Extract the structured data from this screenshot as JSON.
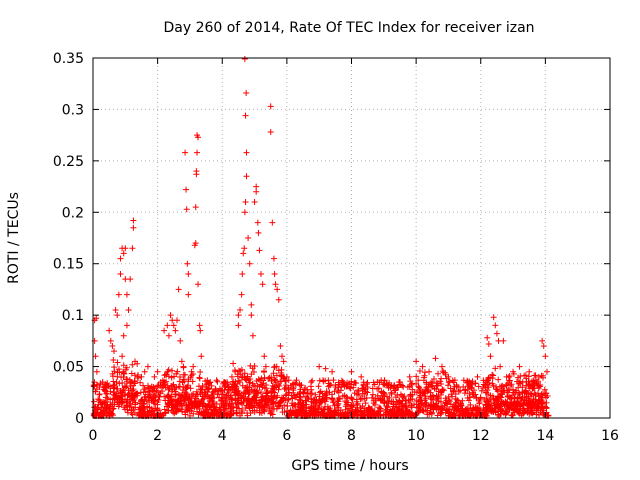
{
  "chart_data": {
    "type": "scatter",
    "title": "Day 260 of 2014, Rate Of TEC Index for receiver izan",
    "xlabel": "GPS time / hours",
    "ylabel": "ROTI / TECUs",
    "xlim": [
      0,
      16
    ],
    "ylim": [
      0,
      0.35
    ],
    "xticks": [
      "0",
      "2",
      "4",
      "6",
      "8",
      "10",
      "12",
      "14",
      "16"
    ],
    "yticks": [
      "0",
      "0.05",
      "0.1",
      "0.15",
      "0.2",
      "0.25",
      "0.3",
      "0.35"
    ],
    "marker": "+",
    "color": "#ff0000",
    "grid": true,
    "series": [
      {
        "name": "ROTI",
        "points": [
          [
            0.05,
            0.095
          ],
          [
            0.1,
            0.097
          ],
          [
            0.05,
            0.075
          ],
          [
            0.08,
            0.06
          ],
          [
            0.12,
            0.045
          ],
          [
            0.2,
            0.03
          ],
          [
            0.3,
            0.035
          ],
          [
            0.4,
            0.02
          ],
          [
            0.5,
            0.085
          ],
          [
            0.55,
            0.075
          ],
          [
            0.6,
            0.07
          ],
          [
            0.65,
            0.065
          ],
          [
            0.7,
            0.105
          ],
          [
            0.75,
            0.1
          ],
          [
            0.8,
            0.12
          ],
          [
            0.85,
            0.14
          ],
          [
            0.85,
            0.155
          ],
          [
            0.9,
            0.165
          ],
          [
            0.95,
            0.16
          ],
          [
            1.0,
            0.165
          ],
          [
            1.0,
            0.135
          ],
          [
            1.05,
            0.12
          ],
          [
            1.1,
            0.105
          ],
          [
            1.05,
            0.09
          ],
          [
            0.95,
            0.08
          ],
          [
            0.9,
            0.06
          ],
          [
            1.15,
            0.135
          ],
          [
            1.25,
            0.185
          ],
          [
            1.25,
            0.192
          ],
          [
            1.22,
            0.165
          ],
          [
            1.3,
            0.055
          ],
          [
            1.5,
            0.04
          ],
          [
            1.6,
            0.045
          ],
          [
            1.7,
            0.05
          ],
          [
            1.9,
            0.04
          ],
          [
            2.0,
            0.045
          ],
          [
            2.1,
            0.035
          ],
          [
            2.2,
            0.085
          ],
          [
            2.3,
            0.09
          ],
          [
            2.35,
            0.08
          ],
          [
            2.4,
            0.1
          ],
          [
            2.45,
            0.095
          ],
          [
            2.5,
            0.09
          ],
          [
            2.55,
            0.085
          ],
          [
            2.6,
            0.095
          ],
          [
            2.65,
            0.125
          ],
          [
            2.7,
            0.075
          ],
          [
            2.75,
            0.055
          ],
          [
            2.8,
            0.05
          ],
          [
            2.85,
            0.258
          ],
          [
            2.88,
            0.222
          ],
          [
            2.9,
            0.203
          ],
          [
            2.92,
            0.15
          ],
          [
            2.95,
            0.14
          ],
          [
            2.95,
            0.12
          ],
          [
            3.05,
            0.045
          ],
          [
            3.1,
            0.05
          ],
          [
            3.15,
            0.168
          ],
          [
            3.18,
            0.17
          ],
          [
            3.18,
            0.205
          ],
          [
            3.2,
            0.237
          ],
          [
            3.2,
            0.24
          ],
          [
            3.22,
            0.258
          ],
          [
            3.22,
            0.275
          ],
          [
            3.25,
            0.273
          ],
          [
            3.25,
            0.13
          ],
          [
            3.3,
            0.09
          ],
          [
            3.32,
            0.085
          ],
          [
            3.35,
            0.06
          ],
          [
            3.5,
            0.03
          ],
          [
            3.7,
            0.025
          ],
          [
            3.9,
            0.02
          ],
          [
            4.1,
            0.03
          ],
          [
            4.3,
            0.04
          ],
          [
            4.4,
            0.045
          ],
          [
            4.5,
            0.09
          ],
          [
            4.5,
            0.1
          ],
          [
            4.55,
            0.105
          ],
          [
            4.6,
            0.12
          ],
          [
            4.62,
            0.14
          ],
          [
            4.65,
            0.16
          ],
          [
            4.68,
            0.165
          ],
          [
            4.7,
            0.2
          ],
          [
            4.72,
            0.21
          ],
          [
            4.75,
            0.235
          ],
          [
            4.75,
            0.258
          ],
          [
            4.72,
            0.294
          ],
          [
            4.74,
            0.316
          ],
          [
            4.7,
            0.349
          ],
          [
            4.8,
            0.175
          ],
          [
            4.85,
            0.15
          ],
          [
            4.9,
            0.11
          ],
          [
            4.9,
            0.1
          ],
          [
            4.95,
            0.08
          ],
          [
            5.0,
            0.21
          ],
          [
            5.05,
            0.225
          ],
          [
            5.05,
            0.22
          ],
          [
            5.1,
            0.19
          ],
          [
            5.12,
            0.18
          ],
          [
            5.15,
            0.163
          ],
          [
            5.2,
            0.14
          ],
          [
            5.25,
            0.13
          ],
          [
            5.3,
            0.06
          ],
          [
            5.35,
            0.05
          ],
          [
            5.5,
            0.303
          ],
          [
            5.5,
            0.278
          ],
          [
            5.55,
            0.19
          ],
          [
            5.6,
            0.155
          ],
          [
            5.62,
            0.14
          ],
          [
            5.65,
            0.13
          ],
          [
            5.7,
            0.125
          ],
          [
            5.75,
            0.115
          ],
          [
            5.8,
            0.07
          ],
          [
            5.85,
            0.06
          ],
          [
            5.9,
            0.055
          ],
          [
            6.0,
            0.04
          ],
          [
            6.2,
            0.03
          ],
          [
            6.5,
            0.025
          ],
          [
            7.0,
            0.05
          ],
          [
            7.2,
            0.048
          ],
          [
            7.4,
            0.045
          ],
          [
            7.6,
            0.03
          ],
          [
            8.0,
            0.045
          ],
          [
            8.3,
            0.04
          ],
          [
            8.5,
            0.03
          ],
          [
            8.8,
            0.035
          ],
          [
            9.2,
            0.03
          ],
          [
            9.5,
            0.035
          ],
          [
            9.8,
            0.04
          ],
          [
            10.0,
            0.055
          ],
          [
            10.2,
            0.05
          ],
          [
            10.4,
            0.045
          ],
          [
            10.6,
            0.058
          ],
          [
            10.8,
            0.05
          ],
          [
            11.0,
            0.04
          ],
          [
            11.3,
            0.03
          ],
          [
            11.6,
            0.035
          ],
          [
            11.9,
            0.04
          ],
          [
            12.2,
            0.078
          ],
          [
            12.25,
            0.072
          ],
          [
            12.3,
            0.06
          ],
          [
            12.4,
            0.098
          ],
          [
            12.45,
            0.09
          ],
          [
            12.5,
            0.082
          ],
          [
            12.55,
            0.075
          ],
          [
            12.6,
            0.05
          ],
          [
            12.7,
            0.075
          ],
          [
            12.8,
            0.04
          ],
          [
            13.0,
            0.045
          ],
          [
            13.2,
            0.05
          ],
          [
            13.5,
            0.045
          ],
          [
            13.8,
            0.04
          ],
          [
            13.9,
            0.075
          ],
          [
            13.95,
            0.07
          ],
          [
            14.0,
            0.06
          ],
          [
            14.05,
            0.045
          ]
        ]
      }
    ]
  }
}
